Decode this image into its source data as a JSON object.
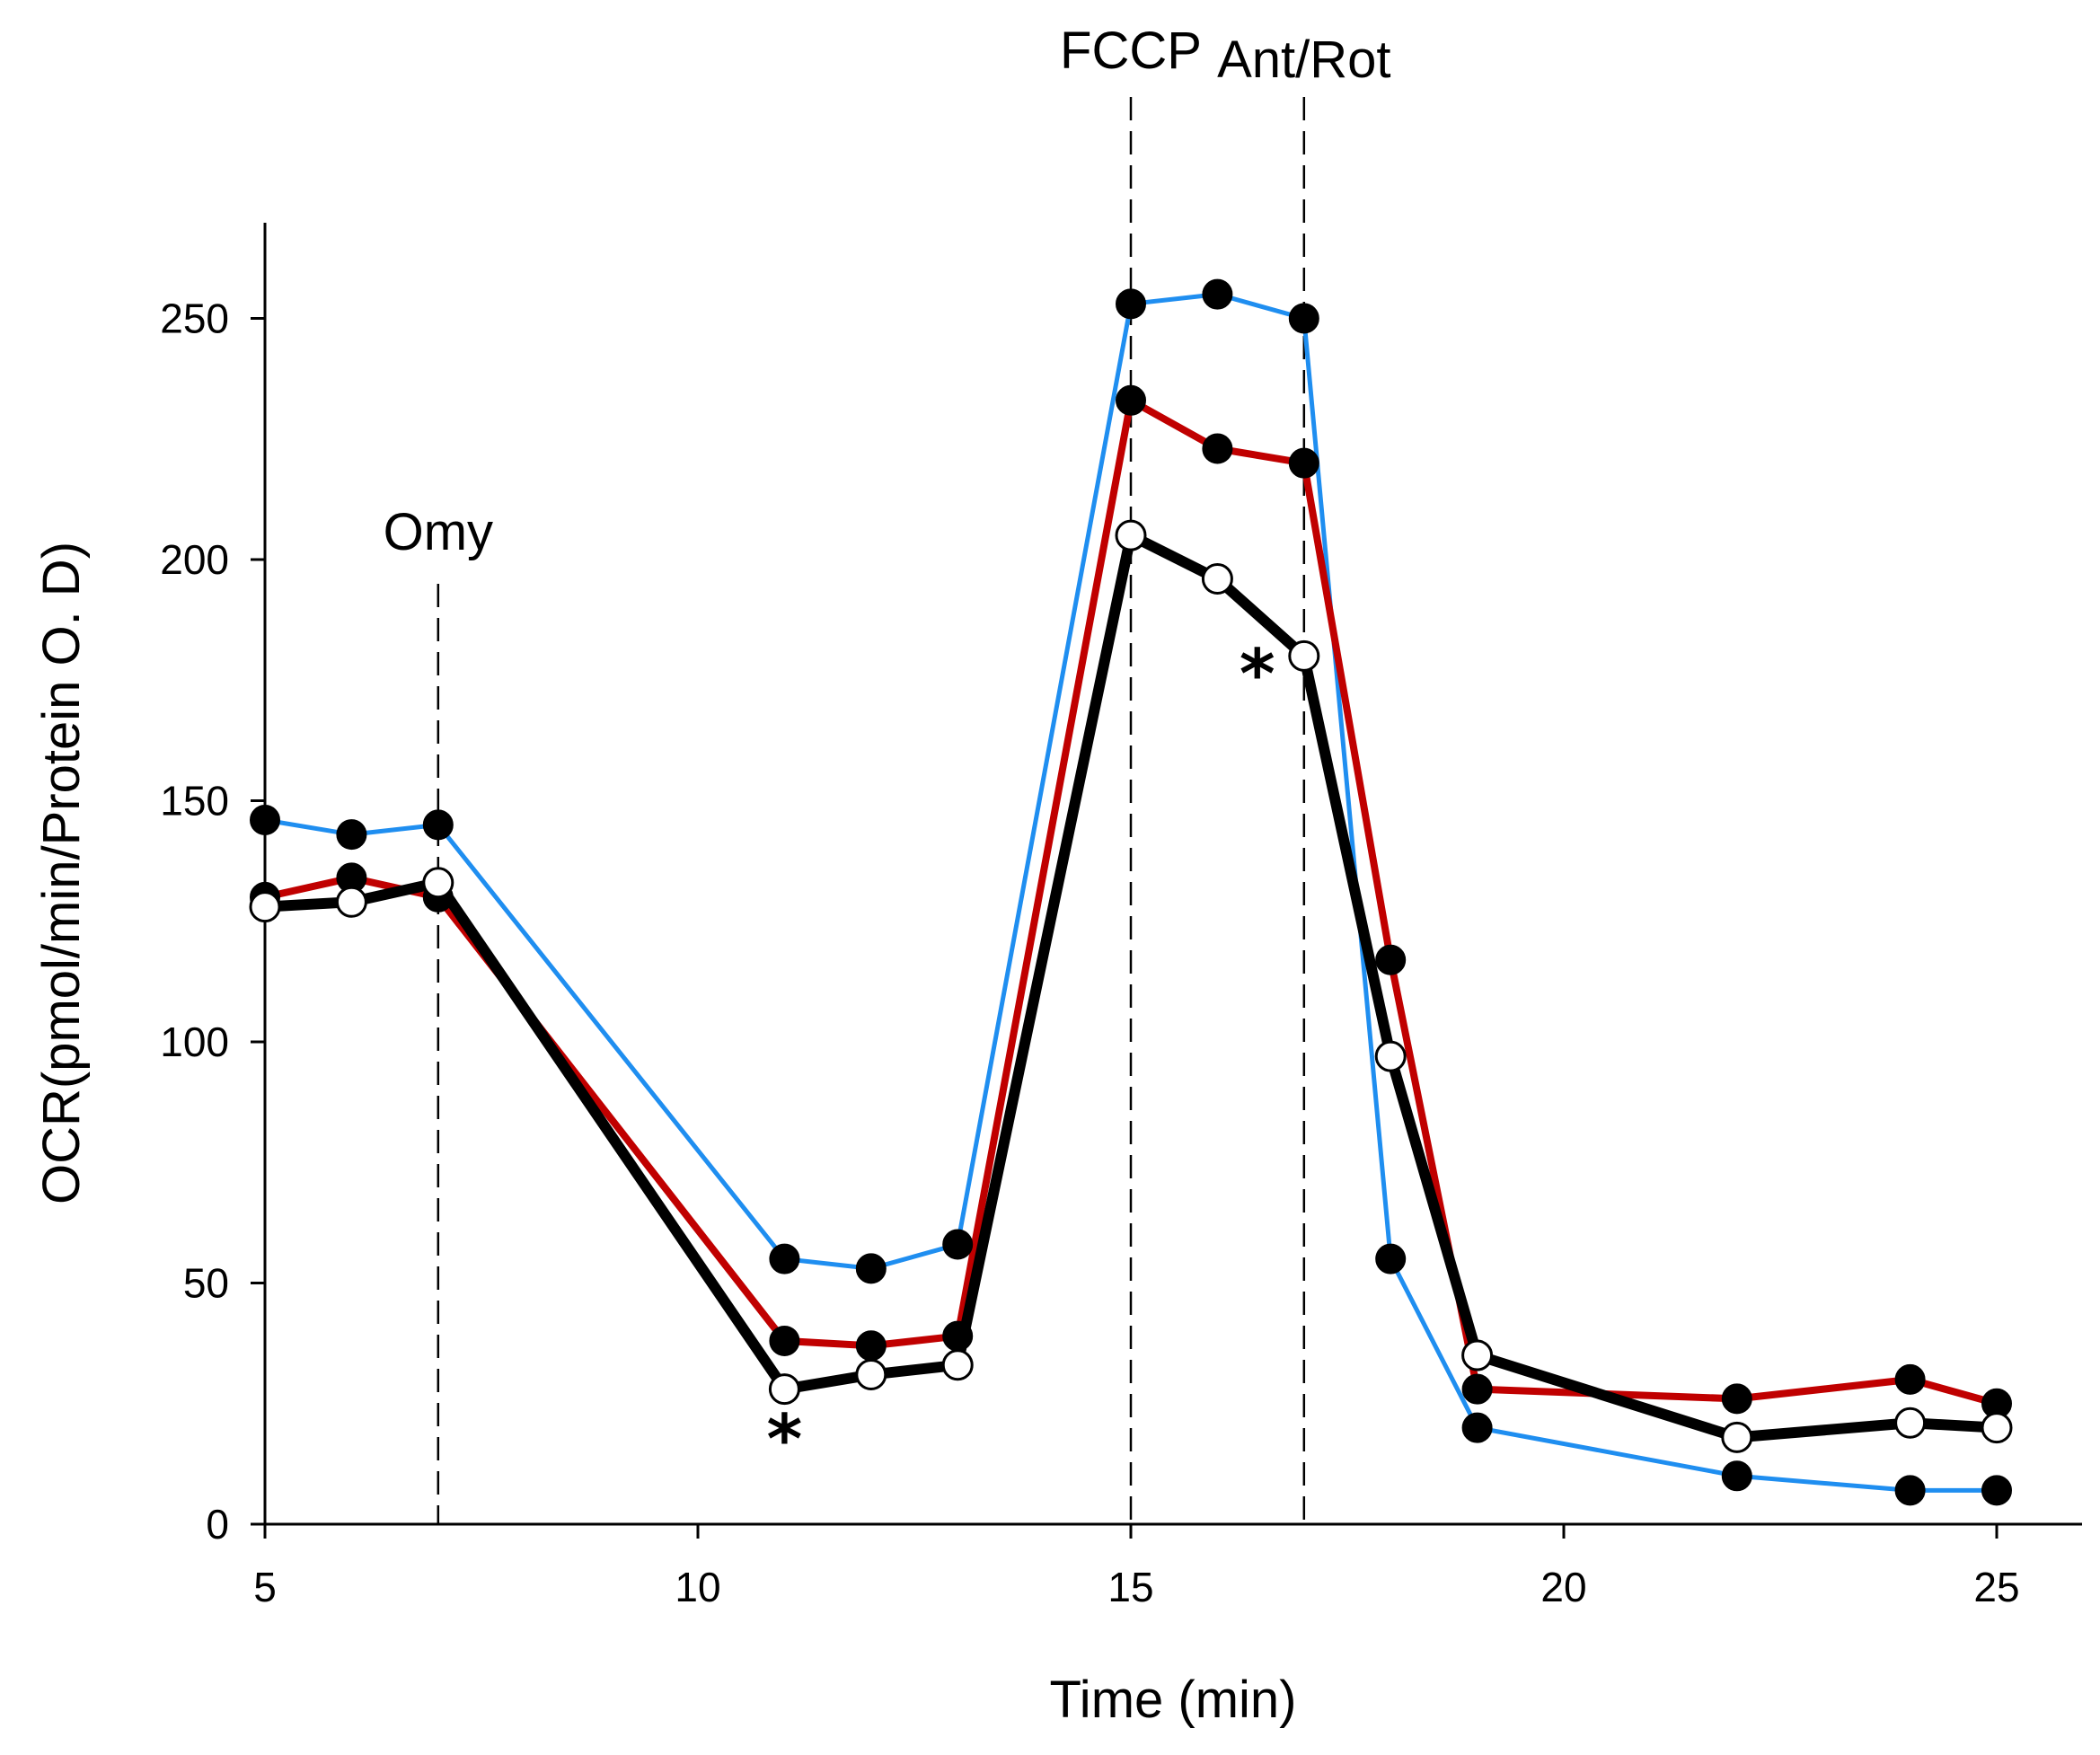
{
  "chart_data": {
    "type": "line",
    "title": "",
    "xlabel": "Time (min)",
    "ylabel": "OCR(pmol/min/Protein O. D)",
    "xlim": [
      5,
      26
    ],
    "ylim": [
      0,
      270
    ],
    "xticks": [
      5,
      10,
      15,
      20,
      25
    ],
    "yticks": [
      0,
      50,
      100,
      150,
      200,
      250
    ],
    "x": [
      5,
      6,
      7,
      11,
      12,
      13,
      15,
      16,
      17,
      18,
      19,
      22,
      24,
      25
    ],
    "series": [
      {
        "name": "blue-series",
        "color": "#1f8ef0",
        "marker": "filled",
        "values": [
          146,
          143,
          145,
          55,
          53,
          58,
          253,
          255,
          250,
          55,
          20,
          10,
          7,
          7
        ]
      },
      {
        "name": "red-series",
        "color": "#c00000",
        "marker": "filled",
        "values": [
          130,
          134,
          130,
          38,
          37,
          39,
          233,
          223,
          220,
          117,
          28,
          26,
          30,
          25
        ]
      },
      {
        "name": "black-series",
        "color": "#000000",
        "marker": "open",
        "values": [
          128,
          129,
          133,
          28,
          31,
          33,
          205,
          196,
          180,
          97,
          35,
          18,
          21,
          20
        ]
      }
    ],
    "annotations": [
      {
        "label": "Omy",
        "x": 7
      },
      {
        "label": "FCCP",
        "x": 15
      },
      {
        "label": "Ant/Rot",
        "x": 17
      }
    ],
    "significance_marks": [
      {
        "text": "*",
        "x": 11,
        "y": 28
      },
      {
        "text": "*",
        "x": 17,
        "y": 180
      }
    ],
    "grid": false,
    "legend": "none"
  }
}
